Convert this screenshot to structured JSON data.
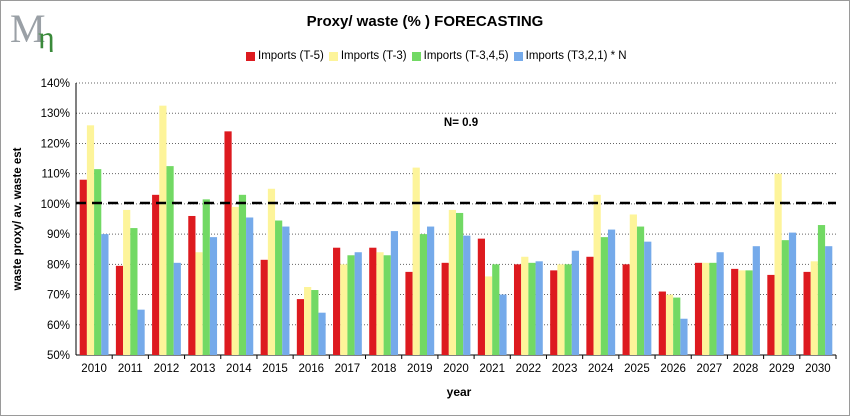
{
  "title": "Proxy/ waste (% ) FORECASTING",
  "logo_text": "Mη",
  "colors": {
    "imports_t5": "#dd1a1f",
    "imports_t3": "#fdf49a",
    "imports_t345": "#72d964",
    "imports_t321": "#75aaea",
    "grid": "#666666",
    "reference_line": "#000000"
  },
  "chart_data": {
    "type": "bar",
    "title": "Proxy/ waste (% ) FORECASTING",
    "xlabel": "year",
    "ylabel": "waste proxy/ av. waste est",
    "ylim": [
      50,
      140
    ],
    "y_ticks": [
      50,
      60,
      70,
      80,
      90,
      100,
      110,
      120,
      130,
      140
    ],
    "y_tick_labels": [
      "50%",
      "60%",
      "70%",
      "80%",
      "90%",
      "100%",
      "110%",
      "120%",
      "130%",
      "140%"
    ],
    "grid": "horizontal dotted",
    "legend_position": "top",
    "categories": [
      "2010",
      "2011",
      "2012",
      "2013",
      "2014",
      "2015",
      "2016",
      "2017",
      "2018",
      "2019",
      "2020",
      "2021",
      "2022",
      "2023",
      "2024",
      "2025",
      "2026",
      "2027",
      "2028",
      "2029",
      "2030"
    ],
    "series": [
      {
        "name": "Imports (T-5)",
        "color": "#dd1a1f",
        "values": [
          108,
          79.5,
          103,
          96,
          124,
          81.5,
          68.5,
          85.5,
          85.5,
          77.5,
          80.5,
          88.5,
          80,
          78,
          82.5,
          80,
          71,
          80.5,
          78.5,
          76.5,
          77.5
        ]
      },
      {
        "name": "Imports (T-3)",
        "color": "#fdf49a",
        "values": [
          126,
          98,
          132.5,
          84,
          99,
          105,
          72.5,
          80,
          84,
          112,
          98,
          76,
          82.5,
          80,
          103,
          96.5,
          70,
          80.5,
          78,
          110,
          81
        ]
      },
      {
        "name": "Imports (T-3,4,5)",
        "color": "#72d964",
        "values": [
          111.5,
          92,
          112.5,
          101.5,
          103,
          94.5,
          71.5,
          83,
          83,
          90,
          97,
          80,
          80.5,
          80,
          89,
          92.5,
          69,
          80.5,
          78,
          88,
          93
        ]
      },
      {
        "name": "Imports (T3,2,1) * N",
        "color": "#75aaea",
        "values": [
          90,
          65,
          80.5,
          89,
          95.5,
          92.5,
          64,
          84,
          91,
          92.5,
          89.5,
          70,
          81,
          84.5,
          91.5,
          87.5,
          62,
          84,
          86,
          90.5,
          86
        ]
      }
    ],
    "reference_line": {
      "value": 100.3,
      "style": "dashed"
    },
    "annotation": "N= 0.9"
  }
}
